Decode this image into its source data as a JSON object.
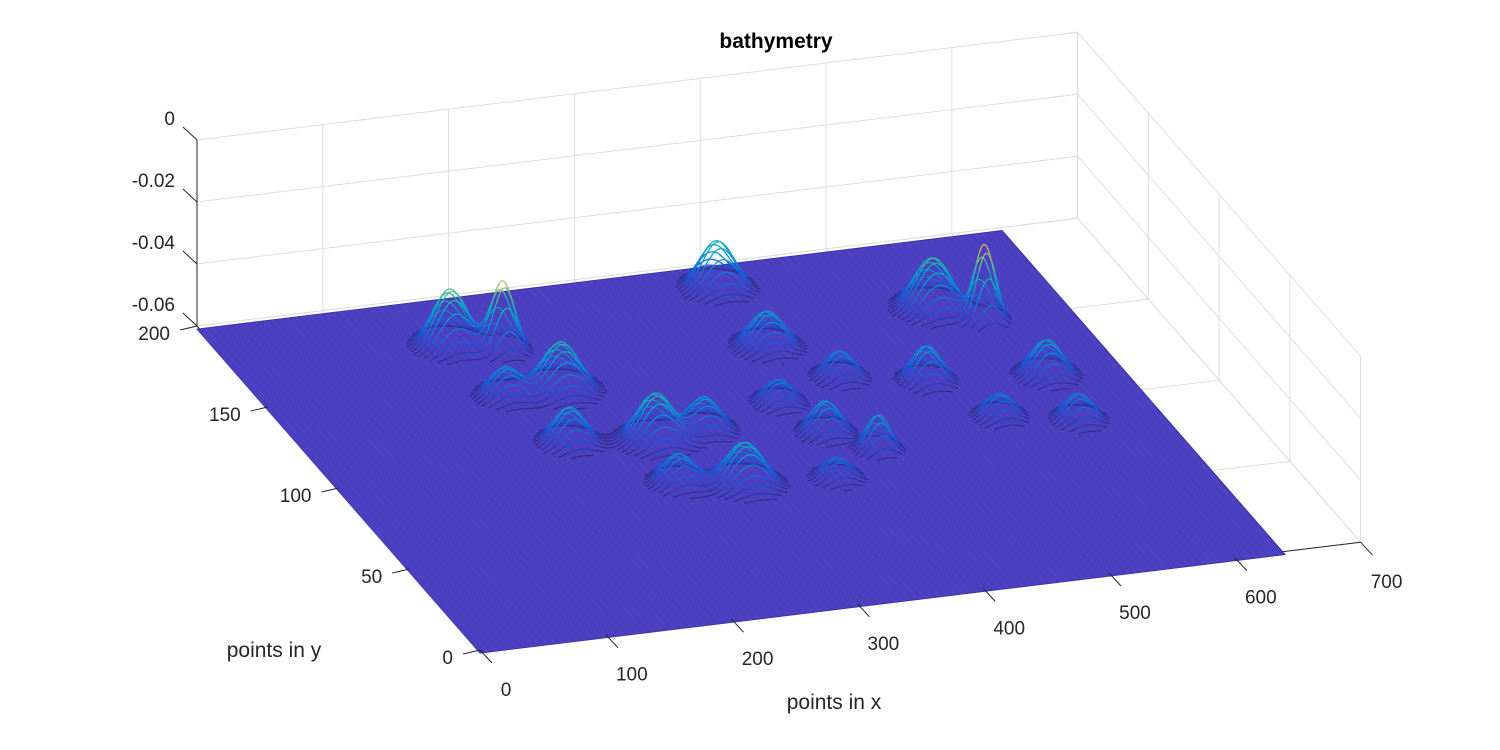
{
  "chart_data": {
    "type": "surface",
    "title": "bathymetry",
    "xlabel": "points in x",
    "ylabel": "points in y",
    "zlabel": "",
    "xlim": [
      0,
      700
    ],
    "ylim": [
      0,
      200
    ],
    "zlim": [
      -0.06,
      0
    ],
    "x_ticks": [
      "0",
      "100",
      "200",
      "300",
      "400",
      "500",
      "600",
      "700"
    ],
    "y_ticks": [
      "0",
      "50",
      "100",
      "150",
      "200"
    ],
    "z_ticks": [
      "-0.06",
      "-0.04",
      "-0.02",
      "0"
    ],
    "grid": true,
    "colormap": "parula",
    "base_depth": -0.061,
    "surface_extent": {
      "x": [
        0,
        640
      ],
      "y": [
        0,
        200
      ]
    },
    "bumps": [
      {
        "x": 170,
        "y": 172,
        "height": 0.019,
        "width": 13
      },
      {
        "x": 205,
        "y": 166,
        "height": 0.023,
        "width": 9
      },
      {
        "x": 222,
        "y": 140,
        "height": 0.016,
        "width": 14
      },
      {
        "x": 178,
        "y": 140,
        "height": 0.01,
        "width": 12
      },
      {
        "x": 195,
        "y": 110,
        "height": 0.012,
        "width": 12
      },
      {
        "x": 258,
        "y": 105,
        "height": 0.016,
        "width": 14
      },
      {
        "x": 300,
        "y": 108,
        "height": 0.011,
        "width": 12
      },
      {
        "x": 248,
        "y": 80,
        "height": 0.01,
        "width": 12
      },
      {
        "x": 295,
        "y": 75,
        "height": 0.014,
        "width": 14
      },
      {
        "x": 398,
        "y": 186,
        "height": 0.016,
        "width": 13
      },
      {
        "x": 397,
        "y": 150,
        "height": 0.012,
        "width": 13
      },
      {
        "x": 370,
        "y": 118,
        "height": 0.008,
        "width": 11
      },
      {
        "x": 430,
        "y": 128,
        "height": 0.009,
        "width": 11
      },
      {
        "x": 385,
        "y": 98,
        "height": 0.011,
        "width": 11
      },
      {
        "x": 412,
        "y": 85,
        "height": 0.012,
        "width": 9
      },
      {
        "x": 365,
        "y": 72,
        "height": 0.007,
        "width": 11
      },
      {
        "x": 540,
        "y": 160,
        "height": 0.017,
        "width": 14
      },
      {
        "x": 570,
        "y": 150,
        "height": 0.025,
        "width": 8
      },
      {
        "x": 490,
        "y": 120,
        "height": 0.012,
        "width": 11
      },
      {
        "x": 580,
        "y": 115,
        "height": 0.012,
        "width": 12
      },
      {
        "x": 520,
        "y": 95,
        "height": 0.008,
        "width": 11
      },
      {
        "x": 575,
        "y": 88,
        "height": 0.009,
        "width": 11
      }
    ]
  }
}
